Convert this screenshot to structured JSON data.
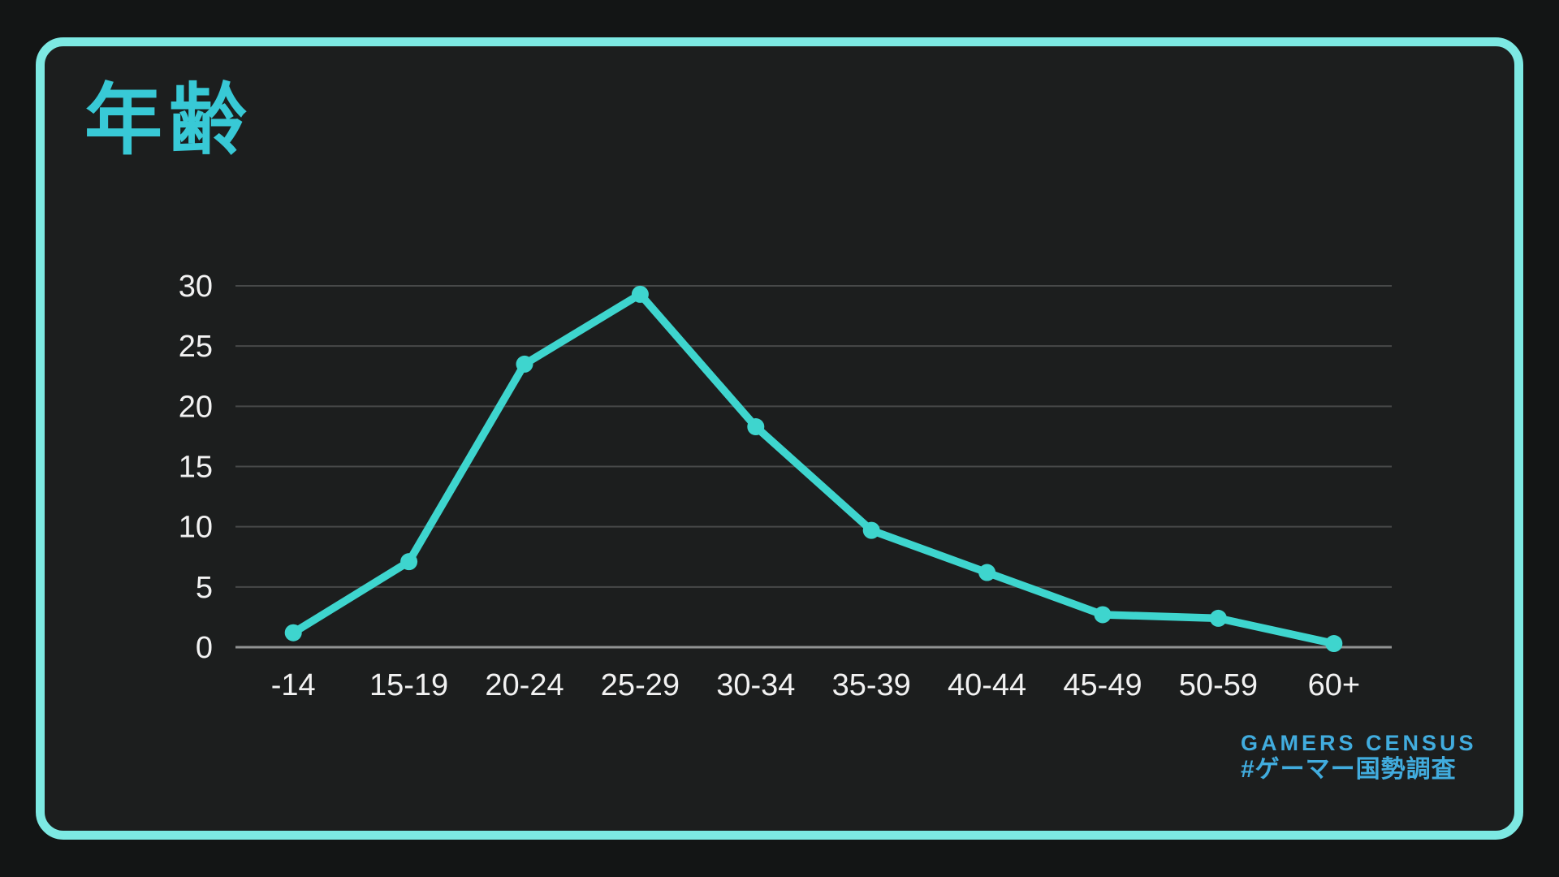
{
  "page": {
    "title": "年齢"
  },
  "logo": {
    "line1": "GAMERS CENSUS",
    "line2": "#ゲーマー国勢調査"
  },
  "colors": {
    "background": "#131515",
    "card_background": "#1C1E1E",
    "border_cyan": "#7DE9E3",
    "title_cyan": "#38C9D6",
    "line_cyan": "#3ED5CE",
    "logo_blue": "#41ACDE",
    "gridline": "#474949",
    "zero_axis": "#919393",
    "tick_text": "#F2F2F2"
  },
  "chart_data": {
    "type": "line",
    "title": "年齢",
    "categories": [
      "-14",
      "15-19",
      "20-24",
      "25-29",
      "30-34",
      "35-39",
      "40-44",
      "45-49",
      "50-59",
      "60+"
    ],
    "values": [
      1.2,
      7.1,
      23.5,
      29.3,
      18.3,
      9.7,
      6.2,
      2.7,
      2.4,
      0.3
    ],
    "y_ticks": [
      0,
      5,
      10,
      15,
      20,
      25,
      30
    ],
    "ylim": [
      0,
      31
    ],
    "xlabel": "",
    "ylabel": "",
    "grid": true,
    "legend": "none",
    "marker": "circle",
    "line_color": "#3ED5CE"
  }
}
